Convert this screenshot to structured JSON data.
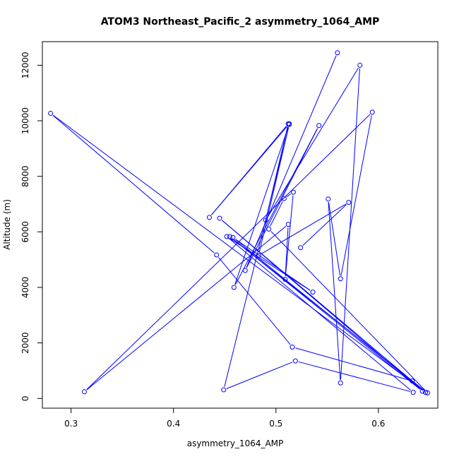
{
  "chart_data": {
    "type": "line",
    "title": "ATOM3 Northeast_Pacific_2 asymmetry_1064_AMP",
    "xlabel": "asymmetry_1064_AMP",
    "ylabel": "Altitude (m)",
    "xlim": [
      0.272,
      0.658
    ],
    "ylim": [
      -350,
      12850
    ],
    "xticks": [
      0.3,
      0.4,
      0.5,
      0.6
    ],
    "yticks": [
      0,
      2000,
      4000,
      6000,
      8000,
      10000,
      12000
    ],
    "xtick_labels": [
      "0.3",
      "0.4",
      "0.5",
      "0.6"
    ],
    "ytick_labels": [
      "0",
      "2000",
      "4000",
      "6000",
      "8000",
      "10000",
      "12000"
    ],
    "grid": false,
    "legend": "none",
    "series": [
      {
        "color": "#0000ff",
        "marker": "open-circle",
        "points": [
          {
            "x": 0.56,
            "y": 12450
          },
          {
            "x": 0.47,
            "y": 4610
          },
          {
            "x": 0.542,
            "y": 9830
          },
          {
            "x": 0.459,
            "y": 4000
          },
          {
            "x": 0.513,
            "y": 9890
          },
          {
            "x": 0.435,
            "y": 6520
          },
          {
            "x": 0.512,
            "y": 9890
          },
          {
            "x": 0.49,
            "y": 6420
          },
          {
            "x": 0.582,
            "y": 12000
          },
          {
            "x": 0.563,
            "y": 560
          },
          {
            "x": 0.551,
            "y": 7180
          },
          {
            "x": 0.563,
            "y": 4310
          },
          {
            "x": 0.594,
            "y": 10310
          },
          {
            "x": 0.313,
            "y": 240
          },
          {
            "x": 0.512,
            "y": 6270
          },
          {
            "x": 0.509,
            "y": 4290
          },
          {
            "x": 0.517,
            "y": 7430
          },
          {
            "x": 0.508,
            "y": 7200
          },
          {
            "x": 0.493,
            "y": 6100
          },
          {
            "x": 0.648,
            "y": 200
          },
          {
            "x": 0.455,
            "y": 5830
          },
          {
            "x": 0.643,
            "y": 260
          },
          {
            "x": 0.445,
            "y": 6490
          },
          {
            "x": 0.633,
            "y": 630
          },
          {
            "x": 0.516,
            "y": 1850
          },
          {
            "x": 0.442,
            "y": 5170
          },
          {
            "x": 0.28,
            "y": 10270
          },
          {
            "x": 0.646,
            "y": 220
          },
          {
            "x": 0.458,
            "y": 5800
          },
          {
            "x": 0.536,
            "y": 3830
          },
          {
            "x": 0.452,
            "y": 5830
          },
          {
            "x": 0.634,
            "y": 220
          },
          {
            "x": 0.519,
            "y": 1350
          },
          {
            "x": 0.449,
            "y": 310
          },
          {
            "x": 0.513,
            "y": 9870
          },
          {
            "x": 0.483,
            "y": 5150
          },
          {
            "x": 0.571,
            "y": 7060
          },
          {
            "x": 0.524,
            "y": 5430
          }
        ]
      }
    ]
  }
}
